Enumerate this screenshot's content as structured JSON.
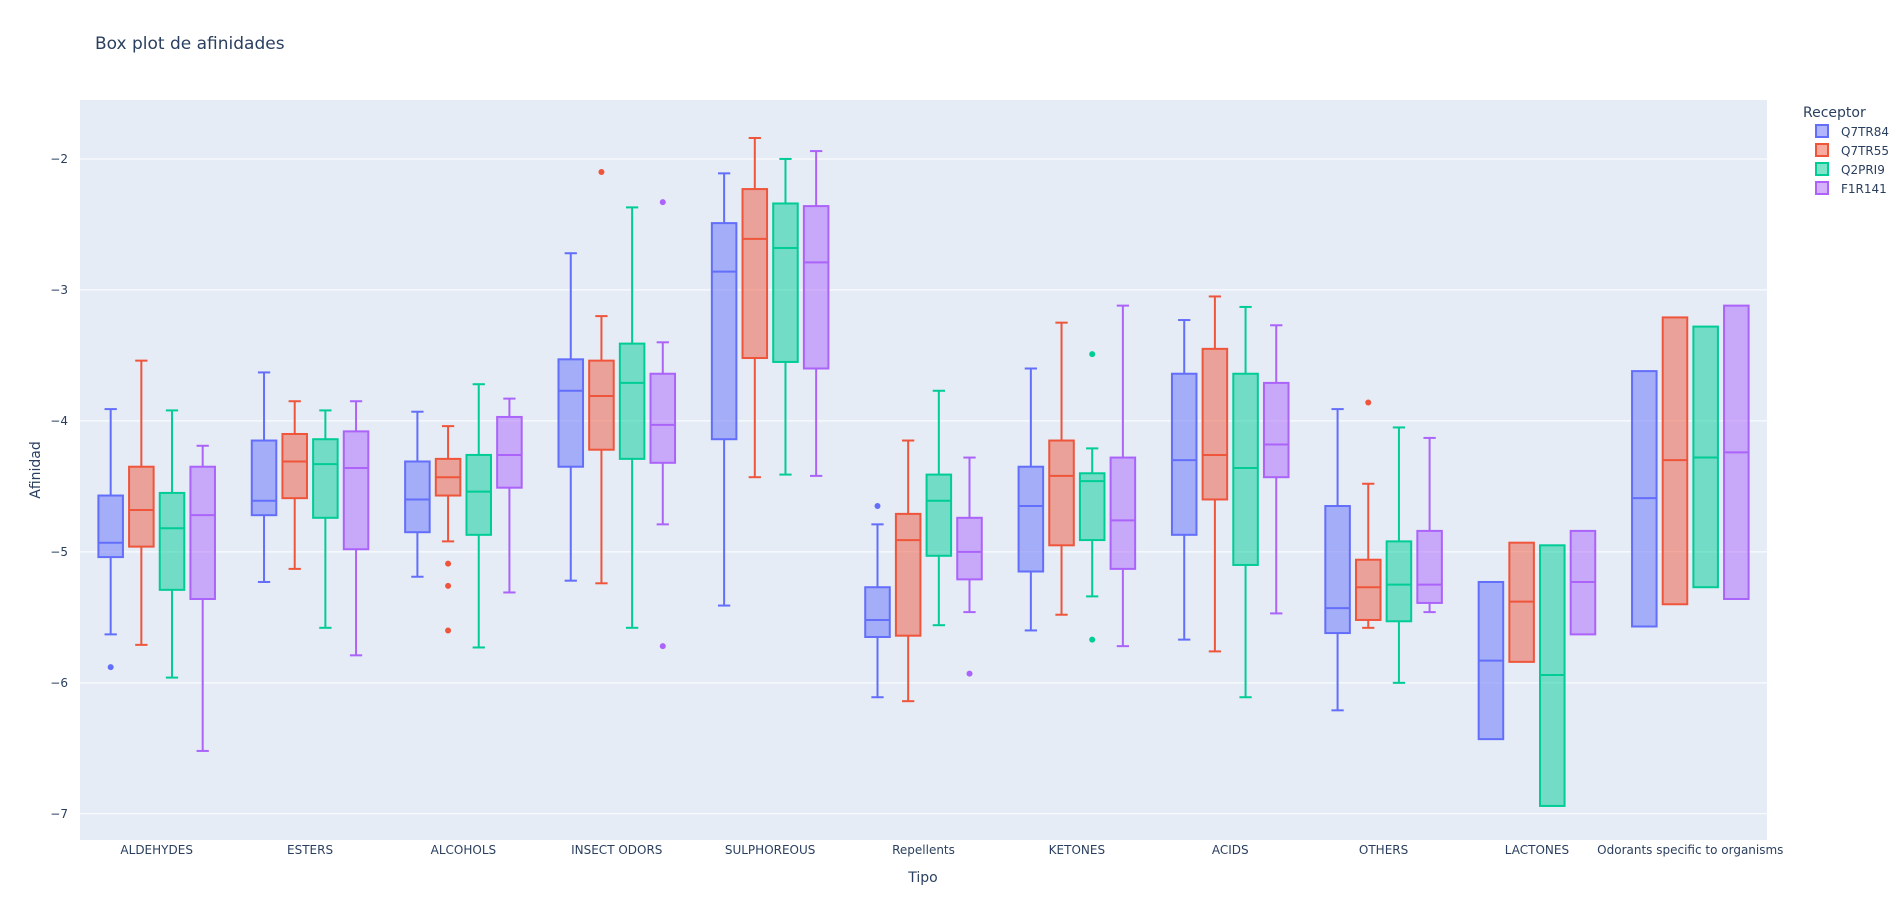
{
  "chart_data": {
    "type": "box",
    "title": "Box plot de afinidades",
    "xlabel": "Tipo",
    "ylabel": "Afinidad",
    "ylim": [
      -7.2,
      -1.55
    ],
    "yticks": [
      -7,
      -6,
      -5,
      -4,
      -3,
      -2
    ],
    "ytick_labels": [
      "−7",
      "−6",
      "−5",
      "−4",
      "−3",
      "−2"
    ],
    "categories": [
      "ALDEHYDES",
      "ESTERS",
      "ALCOHOLS",
      "INSECT ODORS",
      "SULPHOREOUS",
      "Repellents",
      "KETONES",
      "ACIDS",
      "OTHERS",
      "LACTONES",
      "Odorants specific to organisms"
    ],
    "legend": {
      "title": "Receptor",
      "position": "top-right"
    },
    "series": [
      {
        "name": "Q7TR84",
        "color": "#636efa",
        "boxes": [
          {
            "min": -5.63,
            "q1": -5.04,
            "median": -4.93,
            "q3": -4.57,
            "max": -3.91,
            "outliers": [
              -5.88
            ]
          },
          {
            "min": -5.23,
            "q1": -4.72,
            "median": -4.61,
            "q3": -4.15,
            "max": -3.63,
            "outliers": []
          },
          {
            "min": -5.19,
            "q1": -4.85,
            "median": -4.6,
            "q3": -4.31,
            "max": -3.93,
            "outliers": []
          },
          {
            "min": -5.22,
            "q1": -4.35,
            "median": -3.77,
            "q3": -3.53,
            "max": -2.72,
            "outliers": []
          },
          {
            "min": -5.41,
            "q1": -4.14,
            "median": -2.86,
            "q3": -2.49,
            "max": -2.11,
            "outliers": []
          },
          {
            "min": -6.11,
            "q1": -5.65,
            "median": -5.52,
            "q3": -5.27,
            "max": -4.79,
            "outliers": [
              -4.65
            ]
          },
          {
            "min": -5.6,
            "q1": -5.15,
            "median": -4.65,
            "q3": -4.35,
            "max": -3.6,
            "outliers": []
          },
          {
            "min": -5.67,
            "q1": -4.87,
            "median": -4.3,
            "q3": -3.64,
            "max": -3.23,
            "outliers": []
          },
          {
            "min": -6.21,
            "q1": -5.62,
            "median": -5.43,
            "q3": -4.65,
            "max": -3.91,
            "outliers": []
          },
          {
            "min": -6.43,
            "q1": -6.43,
            "median": -5.83,
            "q3": -5.23,
            "max": -5.23,
            "outliers": []
          },
          {
            "min": -5.57,
            "q1": -5.57,
            "median": -4.59,
            "q3": -3.62,
            "max": -3.62,
            "outliers": []
          }
        ]
      },
      {
        "name": "Q7TR55",
        "color": "#ef553b",
        "boxes": [
          {
            "min": -5.71,
            "q1": -4.96,
            "median": -4.68,
            "q3": -4.35,
            "max": -3.54,
            "outliers": []
          },
          {
            "min": -5.13,
            "q1": -4.59,
            "median": -4.31,
            "q3": -4.1,
            "max": -3.85,
            "outliers": []
          },
          {
            "min": -4.92,
            "q1": -4.57,
            "median": -4.43,
            "q3": -4.29,
            "max": -4.04,
            "outliers": [
              -5.09,
              -5.26,
              -5.6
            ]
          },
          {
            "min": -5.24,
            "q1": -4.22,
            "median": -3.81,
            "q3": -3.54,
            "max": -3.2,
            "outliers": [
              -2.1
            ]
          },
          {
            "min": -4.43,
            "q1": -3.52,
            "median": -2.61,
            "q3": -2.23,
            "max": -1.84,
            "outliers": []
          },
          {
            "min": -6.14,
            "q1": -5.64,
            "median": -4.91,
            "q3": -4.71,
            "max": -4.15,
            "outliers": []
          },
          {
            "min": -5.48,
            "q1": -4.95,
            "median": -4.42,
            "q3": -4.15,
            "max": -3.25,
            "outliers": []
          },
          {
            "min": -5.76,
            "q1": -4.6,
            "median": -4.26,
            "q3": -3.45,
            "max": -3.05,
            "outliers": []
          },
          {
            "min": -5.58,
            "q1": -5.52,
            "median": -5.27,
            "q3": -5.06,
            "max": -4.48,
            "outliers": [
              -3.86
            ]
          },
          {
            "min": -5.84,
            "q1": -5.84,
            "median": -5.38,
            "q3": -4.93,
            "max": -4.93,
            "outliers": []
          },
          {
            "min": -5.4,
            "q1": -5.4,
            "median": -4.3,
            "q3": -3.21,
            "max": -3.21,
            "outliers": []
          }
        ]
      },
      {
        "name": "Q2PRI9",
        "color": "#00cc96",
        "boxes": [
          {
            "min": -5.96,
            "q1": -5.29,
            "median": -4.82,
            "q3": -4.55,
            "max": -3.92,
            "outliers": []
          },
          {
            "min": -5.58,
            "q1": -4.74,
            "median": -4.33,
            "q3": -4.14,
            "max": -3.92,
            "outliers": []
          },
          {
            "min": -5.73,
            "q1": -4.87,
            "median": -4.54,
            "q3": -4.26,
            "max": -3.72,
            "outliers": []
          },
          {
            "min": -5.58,
            "q1": -4.29,
            "median": -3.71,
            "q3": -3.41,
            "max": -2.37,
            "outliers": []
          },
          {
            "min": -4.41,
            "q1": -3.55,
            "median": -2.68,
            "q3": -2.34,
            "max": -2.0,
            "outliers": []
          },
          {
            "min": -5.56,
            "q1": -5.03,
            "median": -4.61,
            "q3": -4.41,
            "max": -3.77,
            "outliers": []
          },
          {
            "min": -5.34,
            "q1": -4.91,
            "median": -4.46,
            "q3": -4.4,
            "max": -4.21,
            "outliers": [
              -3.49,
              -5.67
            ]
          },
          {
            "min": -6.11,
            "q1": -5.1,
            "median": -4.36,
            "q3": -3.64,
            "max": -3.13,
            "outliers": []
          },
          {
            "min": -6.0,
            "q1": -5.53,
            "median": -5.25,
            "q3": -4.92,
            "max": -4.05,
            "outliers": []
          },
          {
            "min": -6.94,
            "q1": -6.94,
            "median": -5.94,
            "q3": -4.95,
            "max": -4.95,
            "outliers": []
          },
          {
            "min": -5.27,
            "q1": -5.27,
            "median": -4.28,
            "q3": -3.28,
            "max": -3.28,
            "outliers": []
          }
        ]
      },
      {
        "name": "F1R141",
        "color": "#ab63fa",
        "boxes": [
          {
            "min": -6.52,
            "q1": -5.36,
            "median": -4.72,
            "q3": -4.35,
            "max": -4.19,
            "outliers": []
          },
          {
            "min": -5.79,
            "q1": -4.98,
            "median": -4.36,
            "q3": -4.08,
            "max": -3.85,
            "outliers": []
          },
          {
            "min": -5.31,
            "q1": -4.51,
            "median": -4.26,
            "q3": -3.97,
            "max": -3.83,
            "outliers": []
          },
          {
            "min": -4.79,
            "q1": -4.32,
            "median": -4.03,
            "q3": -3.64,
            "max": -3.4,
            "outliers": [
              -2.33,
              -5.72
            ]
          },
          {
            "min": -4.42,
            "q1": -3.6,
            "median": -2.79,
            "q3": -2.36,
            "max": -1.94,
            "outliers": []
          },
          {
            "min": -5.46,
            "q1": -5.21,
            "median": -5.0,
            "q3": -4.74,
            "max": -4.28,
            "outliers": [
              -5.93
            ]
          },
          {
            "min": -5.72,
            "q1": -5.13,
            "median": -4.76,
            "q3": -4.28,
            "max": -3.12,
            "outliers": []
          },
          {
            "min": -5.47,
            "q1": -4.43,
            "median": -4.18,
            "q3": -3.71,
            "max": -3.27,
            "outliers": []
          },
          {
            "min": -5.46,
            "q1": -5.39,
            "median": -5.25,
            "q3": -4.84,
            "max": -4.13,
            "outliers": []
          },
          {
            "min": -5.63,
            "q1": -5.63,
            "median": -5.23,
            "q3": -4.84,
            "max": -4.84,
            "outliers": []
          },
          {
            "min": -5.36,
            "q1": -5.36,
            "median": -4.24,
            "q3": -3.12,
            "max": -3.12,
            "outliers": []
          }
        ]
      }
    ]
  }
}
